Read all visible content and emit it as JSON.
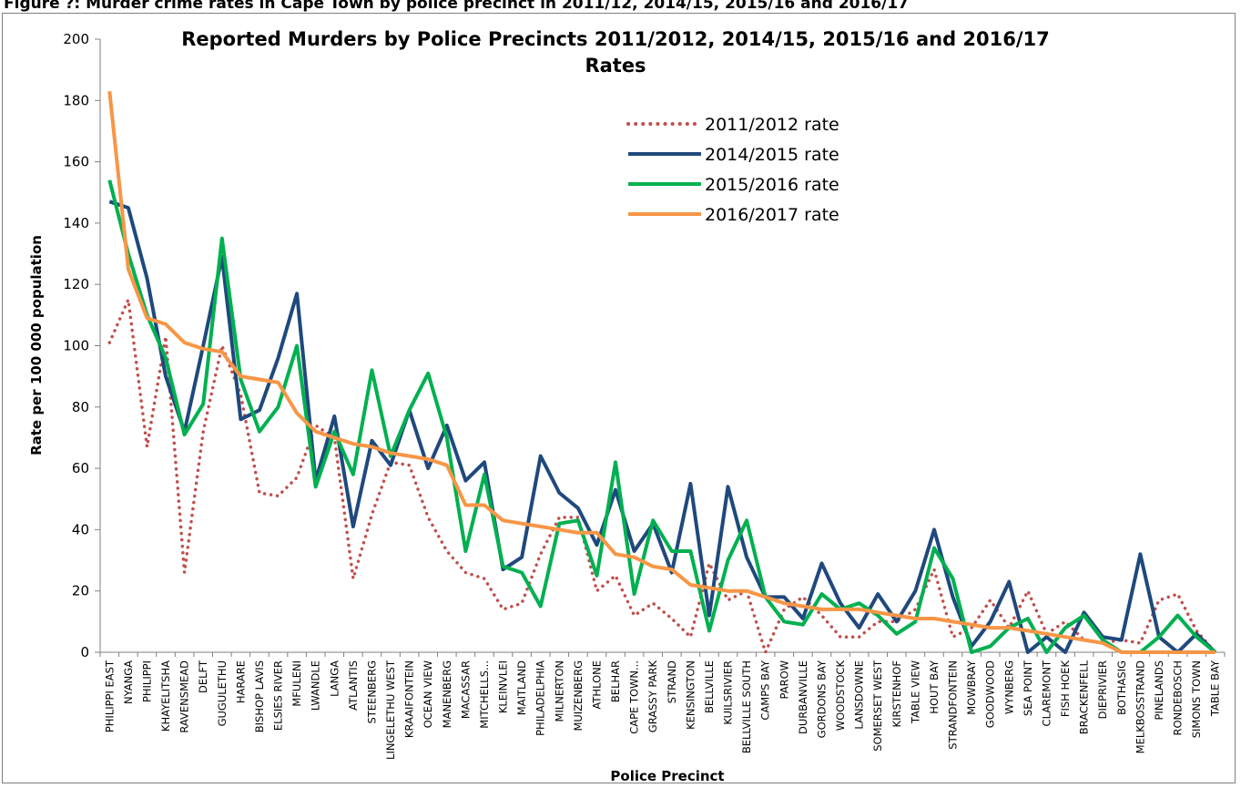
{
  "figure_caption": "Figure ?: Murder crime rates in Cape Town by police precinct in 2011/12, 2014/15, 2015/16 and 2016/17",
  "chart_data": {
    "type": "line",
    "title": "Reported Murders by Police Precincts 2011/2012, 2014/15, 2015/16 and 2016/17",
    "subtitle": "Rates",
    "xlabel": "Police Precinct",
    "ylabel": "Rate per 100 000 population",
    "ylim": [
      0,
      200
    ],
    "yticks": [
      0,
      20,
      40,
      60,
      80,
      100,
      120,
      140,
      160,
      180,
      200
    ],
    "grid": false,
    "legend": "top-right",
    "categories": [
      "PHILIPPI EAST",
      "NYANGA",
      "PHILIPPI",
      "KHAYELITSHA",
      "RAVENSMEAD",
      "DELFT",
      "GUGULETHU",
      "HARARE",
      "BISHOP LAVIS",
      "ELSIES RIVER",
      "MFULENI",
      "LWANDLE",
      "LANGA",
      "ATLANTIS",
      "STEENBERG",
      "LINGELETHU WEST",
      "KRAAIFONTEIN",
      "OCEAN VIEW",
      "MANENBERG",
      "MACASSAR",
      "MITCHELLS...",
      "KLEINVLEI",
      "MAITLAND",
      "PHILADELPHIA",
      "MILNERTON",
      "MUIZENBERG",
      "ATHLONE",
      "BELHAR",
      "CAPE TOWN...",
      "GRASSY PARK",
      "STRAND",
      "KENSINGTON",
      "BELLVILLE",
      "KUILSRIVIER",
      "BELLVILLE SOUTH",
      "CAMPS BAY",
      "PAROW",
      "DURBANVILLE",
      "GORDONS BAY",
      "WOODSTOCK",
      "LANSDOWNE",
      "SOMERSET WEST",
      "KIRSTENHOF",
      "TABLE VIEW",
      "HOUT BAY",
      "STRANDFONTEIN",
      "MOWBRAY",
      "GOODWOOD",
      "WYNBERG",
      "SEA POINT",
      "CLAREMONT",
      "FISH HOEK",
      "BRACKENFELL",
      "DIEPRIVIER",
      "BOTHASIG",
      "MELKBOSSTRAND",
      "PINELANDS",
      "RONDEBOSCH",
      "SIMONS TOWN",
      "TABLE BAY"
    ],
    "series": [
      {
        "name": "2011/2012 rate",
        "color": "#c0504d",
        "dash": "dotted",
        "values": [
          101,
          115,
          67,
          103,
          26,
          72,
          100,
          84,
          52,
          51,
          57,
          74,
          70,
          24,
          45,
          62,
          61,
          44,
          33,
          26,
          24,
          14,
          16,
          32,
          44,
          44,
          20,
          25,
          12,
          16,
          11,
          5,
          29,
          17,
          20,
          0,
          14,
          18,
          12,
          5,
          5,
          10,
          10,
          14,
          27,
          5,
          8,
          17,
          8,
          20,
          6,
          10,
          4,
          3,
          4,
          3,
          17,
          19,
          7,
          0
        ]
      },
      {
        "name": "2014/2015 rate",
        "color": "#1f497d",
        "dash": "solid",
        "values": [
          147,
          145,
          122,
          90,
          72,
          100,
          129,
          76,
          79,
          96,
          117,
          56,
          77,
          41,
          69,
          61,
          79,
          60,
          74,
          56,
          62,
          27,
          31,
          64,
          52,
          47,
          35,
          53,
          33,
          42,
          26,
          55,
          12,
          54,
          31,
          18,
          18,
          11,
          29,
          16,
          8,
          19,
          10,
          20,
          40,
          18,
          2,
          10,
          23,
          0,
          5,
          0,
          13,
          5,
          4,
          32,
          5,
          0,
          6,
          0
        ]
      },
      {
        "name": "2015/2016 rate",
        "color": "#00b050",
        "dash": "solid",
        "values": [
          154,
          130,
          110,
          96,
          71,
          81,
          135,
          89,
          72,
          80,
          100,
          54,
          72,
          58,
          92,
          64,
          79,
          91,
          70,
          33,
          58,
          28,
          26,
          15,
          42,
          43,
          25,
          62,
          19,
          43,
          33,
          33,
          7,
          30,
          43,
          18,
          10,
          9,
          19,
          14,
          16,
          12,
          6,
          10,
          34,
          24,
          0,
          2,
          8,
          11,
          0,
          8,
          12,
          4,
          0,
          0,
          5,
          12,
          5,
          0
        ]
      },
      {
        "name": "2016/2017 rate",
        "color": "#f79646",
        "dash": "solid",
        "values": [
          183,
          125,
          109,
          107,
          101,
          99,
          98,
          90,
          89,
          88,
          78,
          72,
          70,
          68,
          67,
          65,
          64,
          63,
          61,
          48,
          48,
          43,
          42,
          41,
          40,
          39,
          39,
          32,
          31,
          28,
          27,
          22,
          21,
          20,
          20,
          18,
          16,
          15,
          14,
          14,
          14,
          13,
          12,
          11,
          11,
          10,
          9,
          8,
          8,
          7,
          6,
          5,
          4,
          3,
          0,
          0,
          0,
          0,
          0,
          0
        ]
      }
    ]
  }
}
